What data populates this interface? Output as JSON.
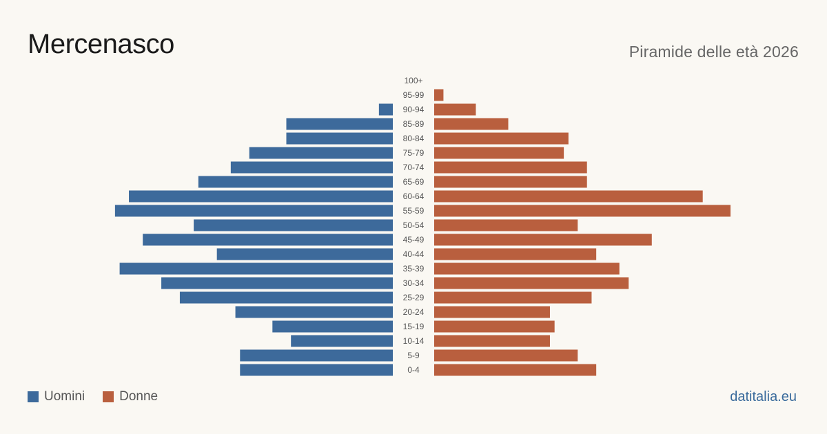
{
  "header": {
    "title": "Mercenasco",
    "subtitle": "Piramide delle età 2026"
  },
  "legend": {
    "men": {
      "label": "Uomini",
      "color": "#3d6a9b"
    },
    "women": {
      "label": "Donne",
      "color": "#b95f3e"
    }
  },
  "brand": "datitalia.eu",
  "chart_data": {
    "type": "bar",
    "orientation": "horizontal-pyramid",
    "categories": [
      "100+",
      "95-99",
      "90-94",
      "85-89",
      "80-84",
      "75-79",
      "70-74",
      "65-69",
      "60-64",
      "55-59",
      "50-54",
      "45-49",
      "40-44",
      "35-39",
      "30-34",
      "25-29",
      "20-24",
      "15-19",
      "10-14",
      "5-9",
      "0-4"
    ],
    "series": [
      {
        "name": "Uomini",
        "color": "#3d6a9b",
        "values": [
          0,
          0,
          3,
          23,
          23,
          31,
          35,
          42,
          57,
          60,
          43,
          54,
          38,
          59,
          50,
          46,
          34,
          26,
          22,
          33,
          33
        ]
      },
      {
        "name": "Donne",
        "color": "#b95f3e",
        "values": [
          0,
          2,
          9,
          16,
          29,
          28,
          33,
          33,
          58,
          64,
          31,
          47,
          35,
          40,
          42,
          34,
          25,
          26,
          25,
          31,
          35
        ]
      }
    ],
    "xlim": [
      0,
      64
    ],
    "legend_position": "bottom-left",
    "grid": false
  }
}
